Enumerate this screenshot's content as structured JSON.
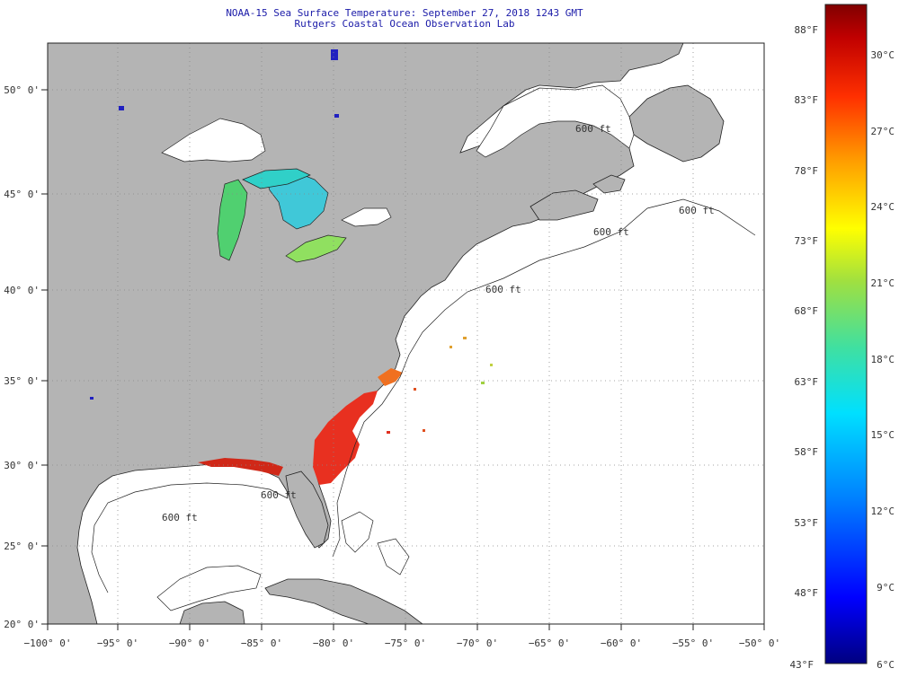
{
  "title": {
    "line1": "NOAA-15 Sea Surface Temperature:  September 27, 2018 1243 GMT",
    "line2": "Rutgers Coastal Ocean Observation Lab"
  },
  "axes": {
    "lon_labels": [
      "−100° 0'",
      "−95° 0'",
      "−90° 0'",
      "−85° 0'",
      "−80° 0'",
      "−75° 0'",
      "−70° 0'",
      "−65° 0'",
      "−60° 0'",
      "−55° 0'",
      "−50° 0'"
    ],
    "lat_labels": [
      "50° 0'",
      "45° 0'",
      "40° 0'",
      "35° 0'",
      "30° 0'",
      "25° 0'",
      "20° 0'"
    ]
  },
  "colorbar": {
    "fahrenheit": [
      "88°F",
      "83°F",
      "78°F",
      "73°F",
      "68°F",
      "63°F",
      "58°F",
      "53°F",
      "48°F",
      "43°F"
    ],
    "celsius": [
      "30°C",
      "27°C",
      "24°C",
      "21°C",
      "18°C",
      "15°C",
      "12°C",
      "9°C",
      "6°C"
    ],
    "gradient_colors": [
      "#000080",
      "#0000ff",
      "#0080ff",
      "#00e0ff",
      "#40e0a0",
      "#a0e040",
      "#ffff00",
      "#ffa000",
      "#ff3000",
      "#c00000",
      "#800000"
    ]
  },
  "bathymetry_labels": [
    "600 ft",
    "600 ft",
    "600 ft",
    "600 ft",
    "600 ft",
    "600 ft"
  ],
  "colors": {
    "land": "#b4b4b4",
    "ocean": "#ffffff",
    "grid": "#888888",
    "title": "#1a1aa8",
    "warm_sst": "#e83020",
    "lake_sst": "#40c8c0"
  }
}
